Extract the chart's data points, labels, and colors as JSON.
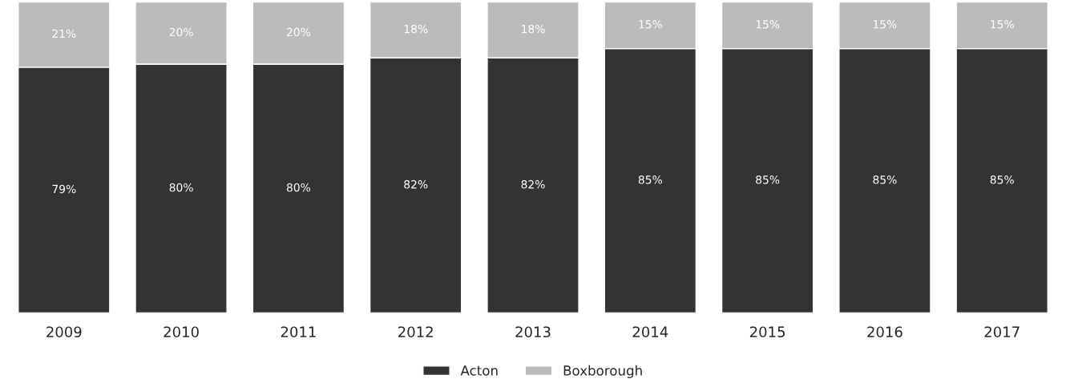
{
  "chart_data": {
    "type": "bar",
    "stacked": true,
    "categories": [
      "2009",
      "2010",
      "2011",
      "2012",
      "2013",
      "2014",
      "2015",
      "2016",
      "2017"
    ],
    "series": [
      {
        "name": "Acton",
        "color": "#333333",
        "values": [
          79,
          80,
          80,
          82,
          82,
          85,
          85,
          85,
          85
        ],
        "value_labels": [
          "79%",
          "80%",
          "80%",
          "82%",
          "82%",
          "85%",
          "85%",
          "85%",
          "85%"
        ]
      },
      {
        "name": "Boxborough",
        "color": "#bbbbbb",
        "values": [
          21,
          20,
          20,
          18,
          18,
          15,
          15,
          15,
          15
        ],
        "value_labels": [
          "21%",
          "20%",
          "20%",
          "18%",
          "18%",
          "15%",
          "15%",
          "15%",
          "15%"
        ]
      }
    ],
    "legend": "bottom",
    "grid": false,
    "tick_labels": "x"
  }
}
